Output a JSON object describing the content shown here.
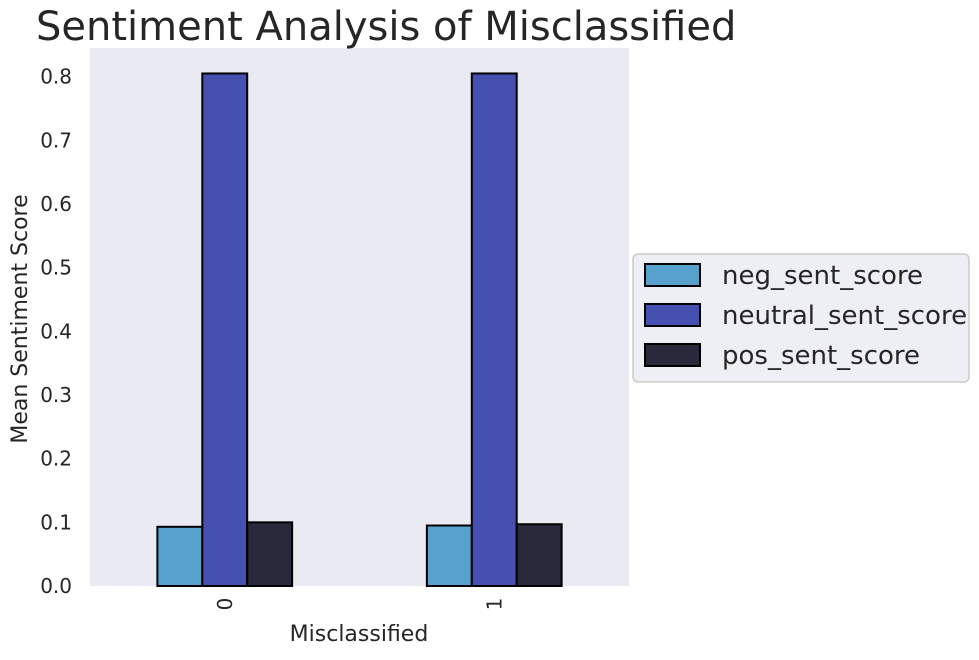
{
  "chart_data": {
    "type": "bar",
    "title": "Sentiment Analysis of Misclassified",
    "xlabel": "Misclassified",
    "ylabel": "Mean Sentiment Score",
    "categories": [
      "0",
      "1"
    ],
    "series": [
      {
        "name": "neg_sent_score",
        "values": [
          0.093,
          0.095
        ],
        "color": "#56a2cd"
      },
      {
        "name": "neutral_sent_score",
        "values": [
          0.805,
          0.805
        ],
        "color": "#4650b0"
      },
      {
        "name": "pos_sent_score",
        "values": [
          0.1,
          0.097
        ],
        "color": "#282a3c"
      }
    ],
    "ylim": [
      0,
      0.845
    ],
    "yticks": [
      "0.0",
      "0.1",
      "0.2",
      "0.3",
      "0.4",
      "0.5",
      "0.6",
      "0.7",
      "0.8"
    ],
    "grid": false,
    "legend_position": "outside-right",
    "plot_background": "#eaeaf2",
    "bar_edge_color": "#000000"
  }
}
